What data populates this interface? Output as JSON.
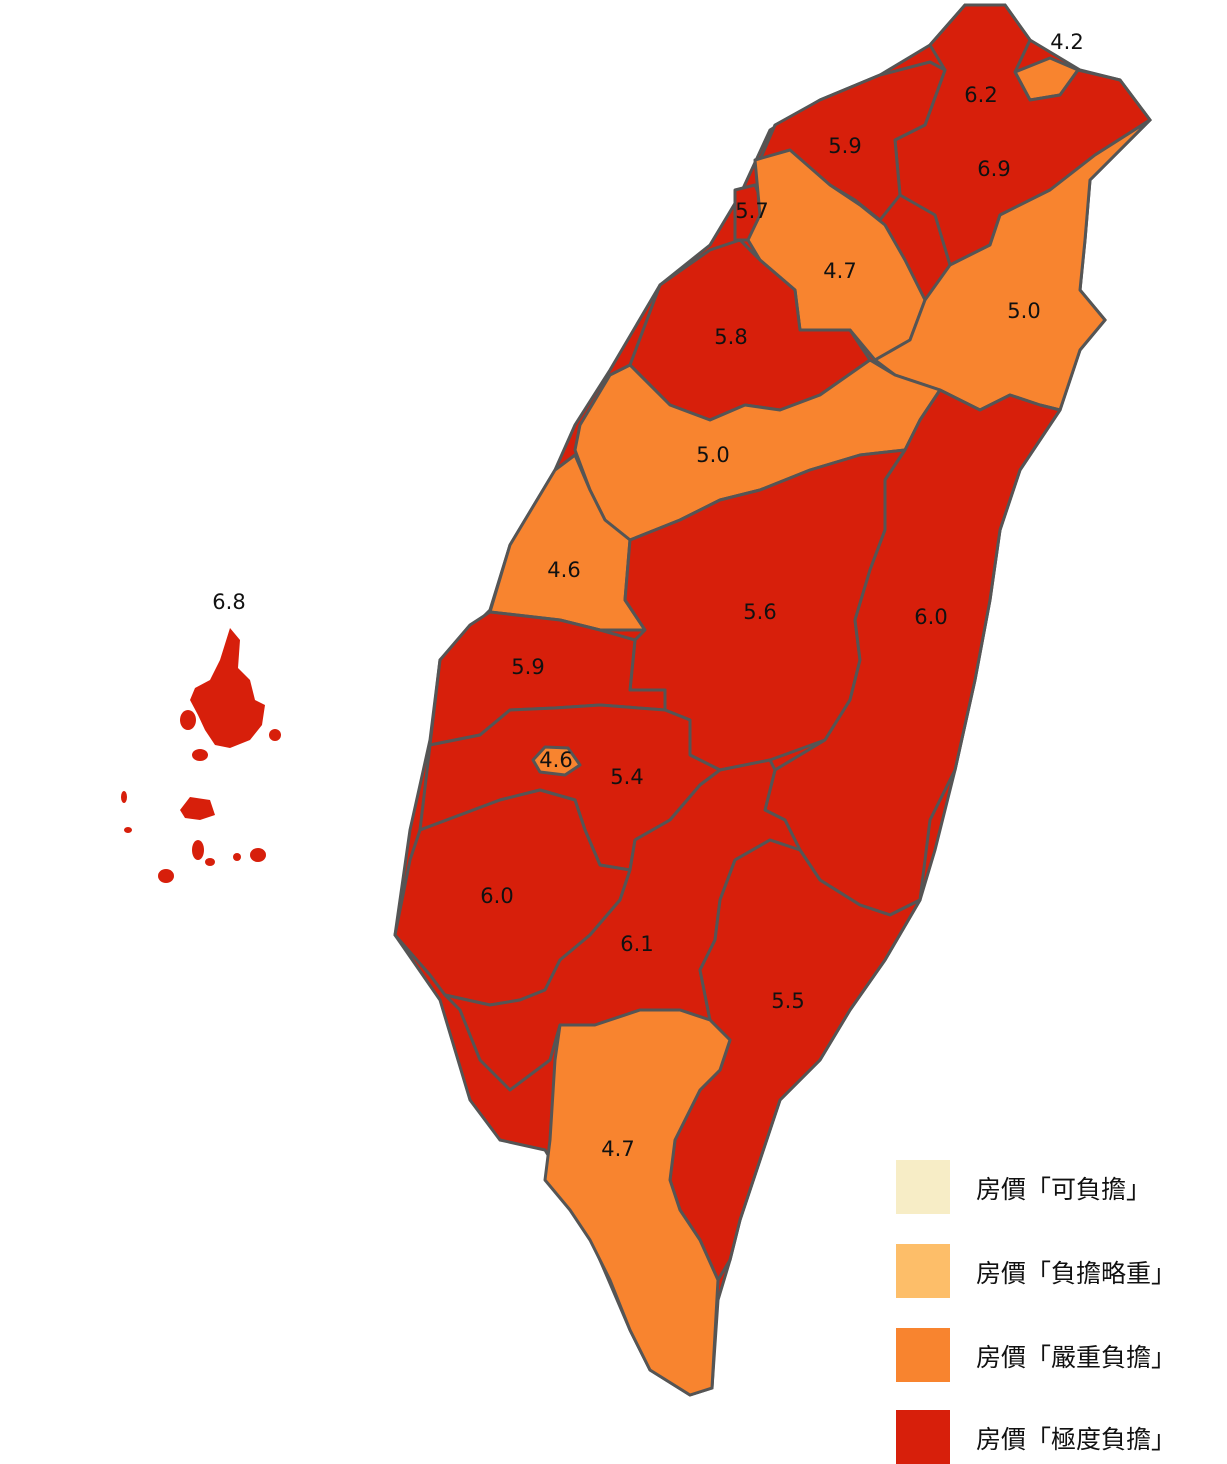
{
  "colors": {
    "affordable": "#f7edc6",
    "slightly_heavy": "#fdbe69",
    "severe": "#f8842f",
    "extreme": "#d71f0b",
    "border": "#555555"
  },
  "regions": {
    "keelung": "4.2",
    "taipei": "6.2",
    "new_taipei": "6.9",
    "taoyuan": "5.9",
    "hsinchu_city": "5.7",
    "hsinchu_county": "4.7",
    "yilan": "5.0",
    "miaoli": "5.8",
    "taichung": "5.0",
    "changhua": "4.6",
    "nantou": "5.6",
    "hualien": "6.0",
    "yunlin": "5.9",
    "chiayi_city": "4.6",
    "chiayi_county": "5.4",
    "tainan": "6.0",
    "kaohsiung": "6.1",
    "taitung": "5.5",
    "pingtung": "4.7",
    "penghu": "6.8"
  },
  "legend": [
    {
      "label": "房價「可負擔」",
      "color": "#f7edc6"
    },
    {
      "label": "房價「負擔略重」",
      "color": "#fdbe69"
    },
    {
      "label": "房價「嚴重負擔」",
      "color": "#f8842f"
    },
    {
      "label": "房價「極度負擔」",
      "color": "#d71f0b"
    }
  ]
}
